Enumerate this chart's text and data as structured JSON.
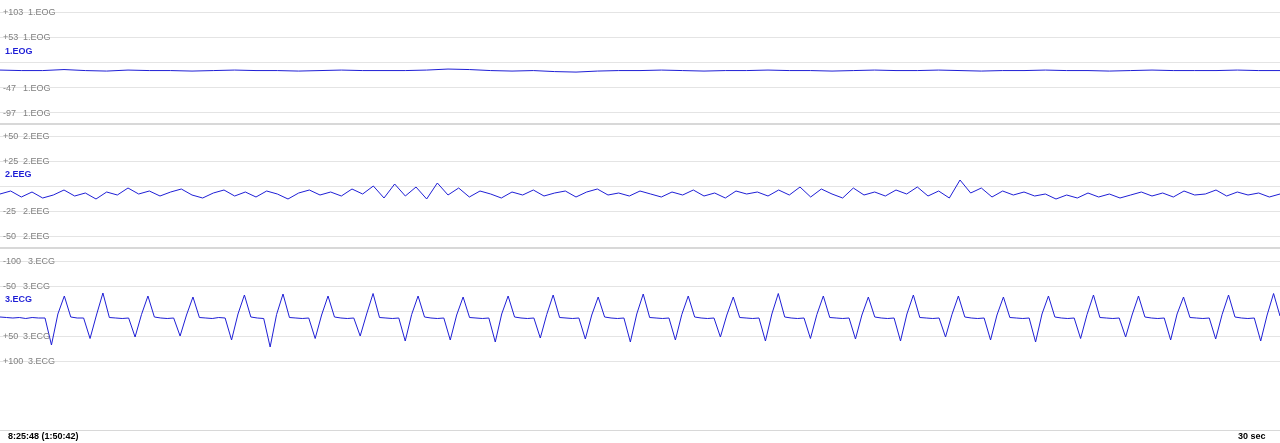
{
  "chart_data": [
    {
      "type": "line",
      "tick_labels": "y",
      "grid": "y",
      "categories": [
        null,
        null,
        null,
        null,
        null,
        null,
        null,
        null,
        null,
        null,
        null,
        null,
        null,
        null,
        null,
        null,
        null,
        null,
        null,
        null,
        null,
        null,
        null,
        null,
        null,
        null,
        null,
        null,
        null,
        null,
        null,
        null,
        null,
        null,
        null,
        null,
        null,
        null,
        null,
        null,
        null,
        null,
        null,
        null,
        null,
        null,
        null,
        null,
        null,
        null,
        null,
        null,
        null,
        null,
        null,
        null,
        null,
        null,
        null,
        null,
        null
      ],
      "ylim": [
        -119,
        127
      ],
      "yticks": [
        {
          "value": 103,
          "label": "+103"
        },
        {
          "value": 53,
          "label": "+53"
        },
        {
          "value": 3,
          "label": null
        },
        {
          "value": -47,
          "label": "-47"
        },
        {
          "value": -97,
          "label": "-97"
        }
      ],
      "series": [
        {
          "name": "1.EOG",
          "color": "#1f1fd6",
          "values": [
            -12,
            -13,
            -13,
            -11,
            -13,
            -14,
            -12,
            -13,
            -13,
            -14,
            -13,
            -12,
            -13,
            -13,
            -14,
            -13,
            -12,
            -13,
            -13,
            -13,
            -12,
            -10,
            -11,
            -13,
            -14,
            -13,
            -15,
            -16,
            -14,
            -13,
            -13,
            -12,
            -13,
            -14,
            -13,
            -13,
            -12,
            -13,
            -13,
            -14,
            -13,
            -12,
            -13,
            -13,
            -12,
            -13,
            -14,
            -13,
            -13,
            -12,
            -13,
            -13,
            -14,
            -13,
            -12,
            -13,
            -13,
            -13,
            -12,
            -13,
            -13
          ]
        }
      ]
    },
    {
      "type": "line",
      "tick_labels": "y",
      "grid": "y",
      "categories": [
        null,
        null,
        null,
        null,
        null,
        null,
        null,
        null,
        null,
        null,
        null,
        null,
        null,
        null,
        null,
        null,
        null,
        null,
        null,
        null,
        null,
        null,
        null,
        null,
        null,
        null,
        null,
        null,
        null,
        null,
        null,
        null,
        null,
        null,
        null,
        null,
        null,
        null,
        null,
        null,
        null,
        null,
        null,
        null,
        null,
        null,
        null,
        null,
        null,
        null,
        null,
        null,
        null,
        null,
        null,
        null,
        null,
        null,
        null,
        null,
        null,
        null,
        null,
        null,
        null,
        null,
        null,
        null,
        null,
        null,
        null,
        null,
        null,
        null,
        null,
        null,
        null,
        null,
        null,
        null,
        null,
        null,
        null,
        null,
        null,
        null,
        null,
        null,
        null,
        null,
        null,
        null,
        null,
        null,
        null,
        null,
        null,
        null,
        null,
        null,
        null,
        null,
        null,
        null,
        null,
        null,
        null,
        null,
        null,
        null,
        null,
        null,
        null,
        null,
        null,
        null,
        null,
        null,
        null,
        null,
        null
      ],
      "ylim": [
        -62,
        62
      ],
      "yticks": [
        {
          "value": 50,
          "label": "+50"
        },
        {
          "value": 25,
          "label": "+25"
        },
        {
          "value": 0,
          "label": null
        },
        {
          "value": -25,
          "label": "-25"
        },
        {
          "value": -50,
          "label": "-50"
        }
      ],
      "series": [
        {
          "name": "2.EEG",
          "color": "#1f1fd6",
          "values": [
            -8,
            -5,
            -11,
            -6,
            -12,
            -9,
            -4,
            -10,
            -7,
            -13,
            -6,
            -9,
            -2,
            -8,
            -5,
            -10,
            -6,
            -3,
            -9,
            -12,
            -7,
            -4,
            -10,
            -6,
            -11,
            -5,
            -8,
            -13,
            -7,
            -4,
            -9,
            -6,
            -10,
            -3,
            -8,
            0,
            -12,
            2,
            -10,
            -1,
            -13,
            3,
            -9,
            -2,
            -11,
            -5,
            -8,
            -12,
            -6,
            -9,
            -4,
            -10,
            -7,
            -5,
            -11,
            -6,
            -3,
            -9,
            -7,
            -10,
            -5,
            -8,
            -11,
            -6,
            -9,
            -4,
            -10,
            -7,
            -12,
            -5,
            -8,
            -6,
            -10,
            -4,
            -9,
            -1,
            -11,
            -3,
            -8,
            -12,
            -2,
            -9,
            -6,
            -10,
            -4,
            -8,
            -1,
            -10,
            -5,
            -12,
            6,
            -7,
            -2,
            -11,
            -5,
            -9,
            -6,
            -10,
            -8,
            -13,
            -9,
            -12,
            -7,
            -11,
            -8,
            -12,
            -9,
            -6,
            -10,
            -7,
            -11,
            -5,
            -9,
            -8,
            -4,
            -10,
            -6,
            -9,
            -7,
            -11,
            -8
          ]
        }
      ]
    },
    {
      "type": "line",
      "tick_labels": "y",
      "grid": "y",
      "categories": [
        null,
        null,
        null,
        null,
        null,
        null,
        null,
        null,
        null,
        null,
        null,
        null,
        null,
        null,
        null,
        null,
        null,
        null,
        null,
        null,
        null,
        null,
        null,
        null,
        null,
        null,
        null,
        null,
        null,
        null,
        null,
        null,
        null,
        null,
        null,
        null,
        null,
        null,
        null,
        null,
        null,
        null,
        null,
        null,
        null,
        null,
        null,
        null,
        null,
        null,
        null,
        null,
        null,
        null,
        null,
        null,
        null,
        null,
        null,
        null,
        null,
        null,
        null,
        null,
        null,
        null,
        null,
        null,
        null,
        null,
        null,
        null,
        null,
        null,
        null,
        null,
        null,
        null,
        null,
        null,
        null,
        null,
        null,
        null,
        null,
        null,
        null,
        null,
        null,
        null,
        null,
        null,
        null,
        null,
        null,
        null,
        null,
        null,
        null,
        null,
        null,
        null,
        null,
        null,
        null,
        null,
        null,
        null,
        null,
        null,
        null,
        null,
        null,
        null,
        null,
        null,
        null,
        null,
        null,
        null,
        null,
        null,
        null,
        null,
        null,
        null,
        null,
        null,
        null,
        null,
        null,
        null,
        null,
        null,
        null,
        null,
        null,
        null,
        null,
        null,
        null,
        null,
        null,
        null,
        null,
        null,
        null,
        null,
        null,
        null,
        null,
        null,
        null,
        null,
        null,
        null,
        null,
        null,
        null,
        null,
        null,
        null,
        null,
        null,
        null,
        null,
        null,
        null,
        null,
        null,
        null,
        null,
        null,
        null,
        null,
        null,
        null,
        null,
        null,
        null,
        null,
        null,
        null,
        null,
        null,
        null,
        null,
        null,
        null,
        null,
        null,
        null,
        null,
        null,
        null,
        null,
        null,
        null,
        null,
        null
      ],
      "ylim": [
        238,
        -126
      ],
      "yticks": [
        {
          "value": -100,
          "label": "-100"
        },
        {
          "value": -50,
          "label": "-50"
        },
        {
          "value": 0,
          "label": null
        },
        {
          "value": 50,
          "label": "+50"
        },
        {
          "value": 100,
          "label": "+100"
        }
      ],
      "annotations": [
        "8:25:48 (1:50:42)",
        "30 sec"
      ],
      "series": [
        {
          "name": "3.ECG",
          "color": "#1f1fd6",
          "values": [
            12,
            13,
            14,
            13,
            15,
            13,
            14,
            14,
            68,
            6,
            -30,
            12,
            14,
            14,
            55,
            8,
            -36,
            13,
            14,
            15,
            14,
            52,
            7,
            -30,
            12,
            14,
            15,
            14,
            50,
            8,
            -28,
            13,
            14,
            15,
            13,
            14,
            58,
            6,
            -32,
            12,
            14,
            15,
            72,
            7,
            -34,
            13,
            14,
            15,
            14,
            55,
            8,
            -30,
            12,
            14,
            15,
            14,
            50,
            6,
            -35,
            13,
            14,
            15,
            14,
            60,
            7,
            -30,
            12,
            14,
            15,
            14,
            58,
            8,
            -28,
            13,
            14,
            15,
            14,
            62,
            6,
            -30,
            12,
            14,
            15,
            14,
            54,
            7,
            -32,
            13,
            14,
            15,
            14,
            56,
            8,
            -28,
            12,
            14,
            15,
            14,
            62,
            6,
            -34,
            13,
            14,
            15,
            14,
            58,
            7,
            -30,
            12,
            14,
            15,
            14,
            52,
            8,
            -28,
            13,
            14,
            15,
            14,
            60,
            6,
            -35,
            12,
            14,
            15,
            14,
            55,
            7,
            -30,
            13,
            14,
            15,
            14,
            56,
            8,
            -28,
            12,
            14,
            15,
            14,
            60,
            6,
            -32,
            13,
            14,
            15,
            14,
            52,
            7,
            -30,
            12,
            14,
            15,
            14,
            58,
            8,
            -28,
            13,
            14,
            15,
            14,
            62,
            6,
            -30,
            12,
            14,
            15,
            14,
            55,
            7,
            -32,
            13,
            14,
            15,
            14,
            52,
            8,
            -30,
            12,
            14,
            15,
            14,
            58,
            6,
            -28,
            13,
            14,
            15,
            14,
            56,
            7,
            -32,
            12,
            14,
            15,
            14,
            60,
            8,
            -35,
            10
          ]
        }
      ]
    }
  ]
}
